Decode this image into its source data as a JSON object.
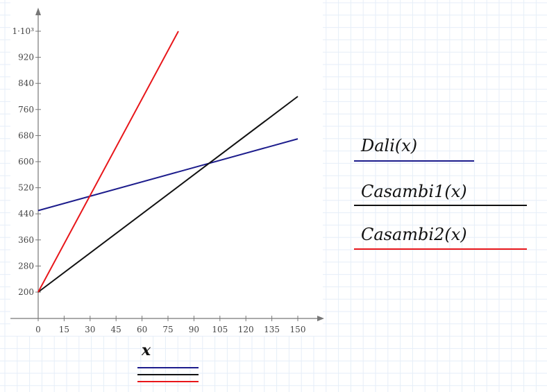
{
  "chart_data": {
    "type": "line",
    "xlim": [
      0,
      150
    ],
    "ylim": [
      200,
      1000
    ],
    "x_ticks": [
      0,
      15,
      30,
      45,
      60,
      75,
      90,
      105,
      120,
      135,
      150
    ],
    "x_tick_labels": [
      "0",
      "15",
      "30",
      "45",
      "60",
      "75",
      "90",
      "105",
      "120",
      "135",
      "150"
    ],
    "y_ticks": [
      200,
      280,
      360,
      440,
      520,
      600,
      680,
      760,
      840,
      920,
      1000
    ],
    "y_tick_labels": [
      "200",
      "280",
      "360",
      "440",
      "520",
      "600",
      "680",
      "760",
      "840",
      "920",
      "1·10³"
    ],
    "xlabel": "x",
    "grid": true,
    "series": [
      {
        "name": "Dali(x)",
        "color": "#1c1c8c",
        "x": [
          0,
          150
        ],
        "y": [
          450,
          670
        ]
      },
      {
        "name": "Casambi1(x)",
        "color": "#111111",
        "x": [
          0,
          150
        ],
        "y": [
          200,
          800
        ]
      },
      {
        "name": "Casambi2(x)",
        "color": "#e8161a",
        "x": [
          0,
          81
        ],
        "y": [
          200,
          1000
        ]
      }
    ]
  },
  "legend": {
    "items": [
      {
        "label": "Dali(x)",
        "color": "#1c1c8c"
      },
      {
        "label": "Casambi1(x)",
        "color": "#111111"
      },
      {
        "label": "Casambi2(x)",
        "color": "#e8161a"
      }
    ]
  },
  "x_variable": {
    "label": "x",
    "trace_colors": [
      "#1c1c8c",
      "#111111",
      "#e8161a"
    ]
  }
}
